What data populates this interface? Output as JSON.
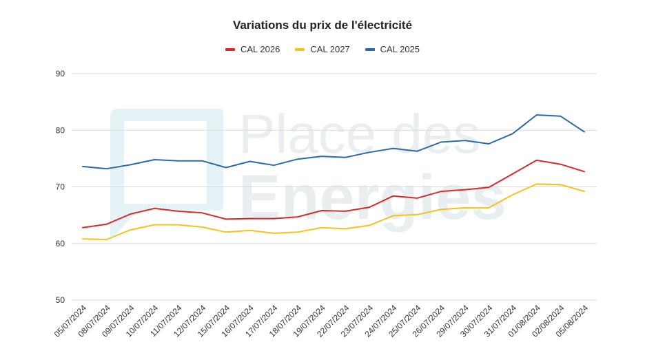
{
  "chart_data": {
    "type": "line",
    "title": "Variations du prix de l'électricité",
    "xlabel": "",
    "ylabel": "",
    "ylim": [
      50,
      90
    ],
    "yticks": [
      50,
      60,
      70,
      80,
      90
    ],
    "grid": true,
    "legend_position": "top",
    "categories": [
      "05/07/2024",
      "08/07/2024",
      "09/07/2024",
      "10/07/2024",
      "11/07/2024",
      "12/07/2024",
      "15/07/2024",
      "16/07/2024",
      "17/07/2024",
      "18/07/2024",
      "19/07/2024",
      "22/07/2024",
      "23/07/2024",
      "24/07/2024",
      "25/07/2024",
      "26/07/2024",
      "29/07/2024",
      "30/07/2024",
      "31/07/2024",
      "01/08/2024",
      "02/08/2024",
      "05/08/2024"
    ],
    "series": [
      {
        "name": "CAL 2026",
        "color": "#d62b2b",
        "values": [
          62.8,
          63.4,
          65.2,
          66.2,
          65.7,
          65.4,
          64.3,
          64.4,
          64.4,
          64.7,
          65.8,
          65.7,
          66.4,
          68.4,
          68.0,
          69.2,
          69.5,
          69.9,
          72.3,
          74.7,
          74.0,
          72.7
        ]
      },
      {
        "name": "CAL 2027",
        "color": "#f5c21a",
        "values": [
          60.8,
          60.7,
          62.4,
          63.3,
          63.3,
          62.9,
          62.0,
          62.3,
          61.8,
          62.0,
          62.8,
          62.6,
          63.2,
          64.9,
          65.1,
          66.0,
          66.3,
          66.3,
          68.6,
          70.5,
          70.4,
          69.2
        ]
      },
      {
        "name": "CAL 2025",
        "color": "#2f68a8",
        "values": [
          73.6,
          73.2,
          73.9,
          74.8,
          74.6,
          74.6,
          73.4,
          74.5,
          73.8,
          74.9,
          75.4,
          75.2,
          76.1,
          76.8,
          76.3,
          77.9,
          78.2,
          77.6,
          79.4,
          82.7,
          82.5,
          79.7
        ]
      }
    ],
    "legend_order": [
      "CAL 2026",
      "CAL 2027",
      "CAL 2025"
    ]
  },
  "watermark": {
    "line1": "Place des",
    "line2": "Energies"
  }
}
